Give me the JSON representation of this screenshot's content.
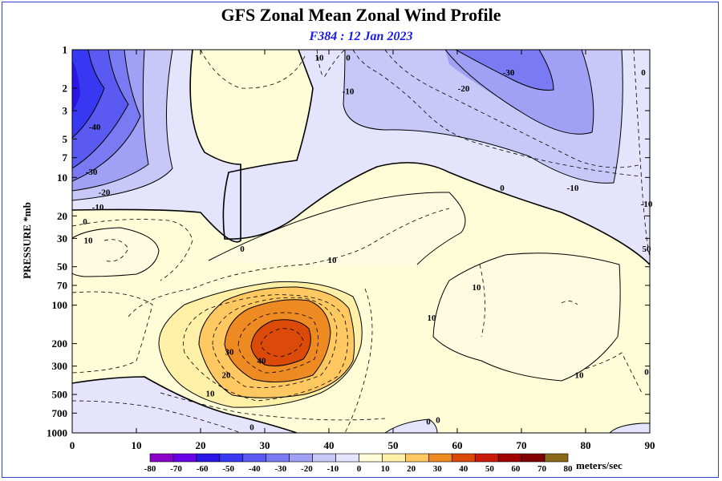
{
  "chart_data": {
    "type": "contour",
    "title": "GFS Zonal Mean Zonal Wind Profile",
    "subtitle": "F384 : 12 Jan 2023",
    "xlabel": "",
    "ylabel": "PRESSURE *mb",
    "x_ticks": [
      "0",
      "10",
      "20",
      "30",
      "40",
      "50",
      "60",
      "70",
      "80",
      "90"
    ],
    "xlim": [
      0,
      90
    ],
    "y_ticks": [
      {
        "label": "1",
        "p": 1
      },
      {
        "label": "2",
        "p": 2
      },
      {
        "label": "3",
        "p": 3
      },
      {
        "label": "5",
        "p": 5
      },
      {
        "label": "7",
        "p": 7
      },
      {
        "label": "10",
        "p": 10
      },
      {
        "label": "20",
        "p": 20
      },
      {
        "label": "30",
        "p": 30
      },
      {
        "label": "50",
        "p": 50
      },
      {
        "label": "70",
        "p": 70
      },
      {
        "label": "100",
        "p": 100
      },
      {
        "label": "200",
        "p": 200
      },
      {
        "label": "300",
        "p": 300
      },
      {
        "label": "500",
        "p": 500
      },
      {
        "label": "700",
        "p": 700
      },
      {
        "label": "1000",
        "p": 1000
      }
    ],
    "ylim_mb": [
      1,
      1000
    ],
    "y_scale": "log",
    "colorbar": {
      "unit": "meters/sec",
      "levels": [
        -80,
        -70,
        -60,
        -50,
        -40,
        -30,
        -20,
        -10,
        0,
        10,
        20,
        30,
        40,
        50,
        60,
        70,
        80
      ],
      "labels": [
        "-80",
        "-70",
        "-60",
        "-50",
        "-40",
        "-30",
        "-20",
        "-10",
        "0",
        "10",
        "20",
        "30",
        "40",
        "50",
        "60",
        "70",
        "80"
      ],
      "colors": [
        "#8a00c8",
        "#6a00e8",
        "#2a14e6",
        "#3838f2",
        "#5a5af2",
        "#7a7af2",
        "#a0a0f4",
        "#c8c8f8",
        "#e4e4fc",
        "#fffcd8",
        "#fff0a8",
        "#ffc860",
        "#ee8a22",
        "#dc4a0a",
        "#cc1a0a",
        "#a00000",
        "#800000",
        "#8a6a1a"
      ]
    },
    "contour_labels": [
      {
        "text": "-40",
        "x": 3.5,
        "p": 4
      },
      {
        "text": "-30",
        "x": 3,
        "p": 9
      },
      {
        "text": "-20",
        "x": 5,
        "p": 13
      },
      {
        "text": "-10",
        "x": 4,
        "p": 17
      },
      {
        "text": "0",
        "x": 2,
        "p": 22
      },
      {
        "text": "10",
        "x": 2.5,
        "p": 31
      },
      {
        "text": "10",
        "x": 38.5,
        "p": 1.15
      },
      {
        "text": "0",
        "x": 43,
        "p": 1.15
      },
      {
        "text": "-10",
        "x": 43,
        "p": 2.1
      },
      {
        "text": "-20",
        "x": 61,
        "p": 2
      },
      {
        "text": "-30",
        "x": 68,
        "p": 1.5
      },
      {
        "text": "0",
        "x": 89,
        "p": 1.5
      },
      {
        "text": "0",
        "x": 67,
        "p": 12
      },
      {
        "text": "-10",
        "x": 78,
        "p": 12
      },
      {
        "text": "-10",
        "x": 89.5,
        "p": 16
      },
      {
        "text": "50",
        "x": 89.5,
        "p": 36
      },
      {
        "text": "0",
        "x": 26.5,
        "p": 36
      },
      {
        "text": "10",
        "x": 40.5,
        "p": 44
      },
      {
        "text": "10",
        "x": 63,
        "p": 72
      },
      {
        "text": "10",
        "x": 56,
        "p": 125
      },
      {
        "text": "30",
        "x": 24.5,
        "p": 230
      },
      {
        "text": "40",
        "x": 29.5,
        "p": 270
      },
      {
        "text": "20",
        "x": 24,
        "p": 350
      },
      {
        "text": "10",
        "x": 21.5,
        "p": 490
      },
      {
        "text": "10",
        "x": 79,
        "p": 350
      },
      {
        "text": "0",
        "x": 89.5,
        "p": 330
      },
      {
        "text": "0",
        "x": 28,
        "p": 900
      },
      {
        "text": "0",
        "x": 55.5,
        "p": 810
      },
      {
        "text": "0",
        "x": 57,
        "p": 790
      }
    ]
  }
}
